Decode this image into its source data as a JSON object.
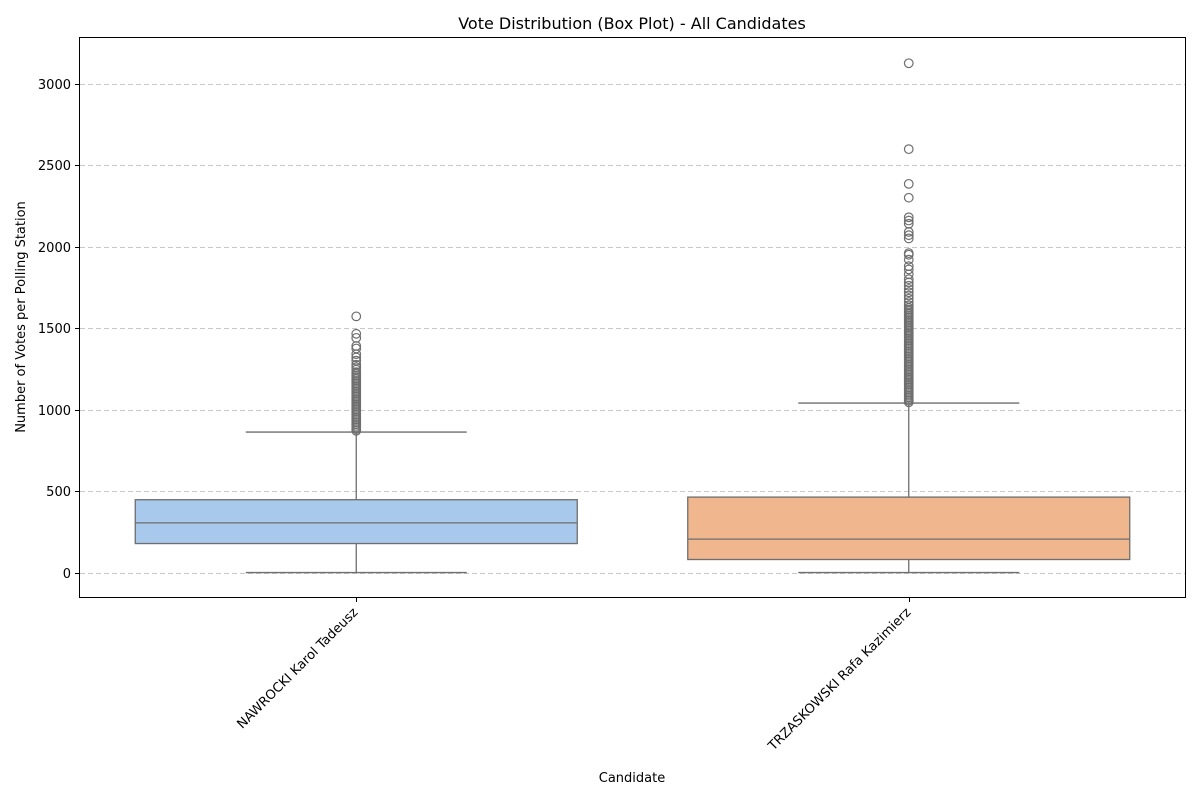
{
  "chart_data": {
    "type": "box",
    "title": "Vote Distribution (Box Plot) - All Candidates",
    "xlabel": "Candidate",
    "ylabel": "Number of Votes per Polling Station",
    "ylim": [
      -150,
      3280
    ],
    "yticks": [
      0,
      500,
      1000,
      1500,
      2000,
      2500,
      3000
    ],
    "grid": "horizontal-dashed",
    "categories": [
      "NAWROCKI Karol Tadeusz",
      "TRZASKOWSKI Rafa Kazimierz"
    ],
    "series": [
      {
        "color": "#a8c8ec",
        "min": 0,
        "q1": 178,
        "median": 305,
        "q3": 447,
        "max": 862,
        "outliers": [
          870,
          880,
          890,
          900,
          910,
          920,
          930,
          940,
          950,
          960,
          970,
          980,
          990,
          1000,
          1010,
          1020,
          1030,
          1040,
          1050,
          1060,
          1070,
          1080,
          1090,
          1100,
          1110,
          1120,
          1130,
          1140,
          1150,
          1160,
          1170,
          1180,
          1190,
          1200,
          1210,
          1220,
          1230,
          1245,
          1260,
          1275,
          1300,
          1320,
          1340,
          1375,
          1390,
          1440,
          1465,
          1572
        ]
      },
      {
        "color": "#f0b68e",
        "min": 0,
        "q1": 80,
        "median": 205,
        "q3": 463,
        "max": 1040,
        "outliers": [
          1045,
          1055,
          1065,
          1075,
          1085,
          1095,
          1105,
          1115,
          1125,
          1135,
          1145,
          1155,
          1165,
          1175,
          1185,
          1195,
          1205,
          1215,
          1225,
          1235,
          1245,
          1255,
          1265,
          1275,
          1285,
          1295,
          1305,
          1315,
          1325,
          1335,
          1345,
          1355,
          1365,
          1375,
          1385,
          1395,
          1405,
          1415,
          1425,
          1435,
          1445,
          1455,
          1465,
          1475,
          1485,
          1495,
          1505,
          1515,
          1525,
          1535,
          1545,
          1555,
          1565,
          1575,
          1585,
          1595,
          1605,
          1615,
          1625,
          1640,
          1660,
          1680,
          1700,
          1720,
          1740,
          1760,
          1780,
          1800,
          1830,
          1860,
          1880,
          1920,
          1950,
          1960,
          2050,
          2070,
          2090,
          2140,
          2160,
          2180,
          2300,
          2385,
          2598,
          3125
        ]
      }
    ]
  }
}
